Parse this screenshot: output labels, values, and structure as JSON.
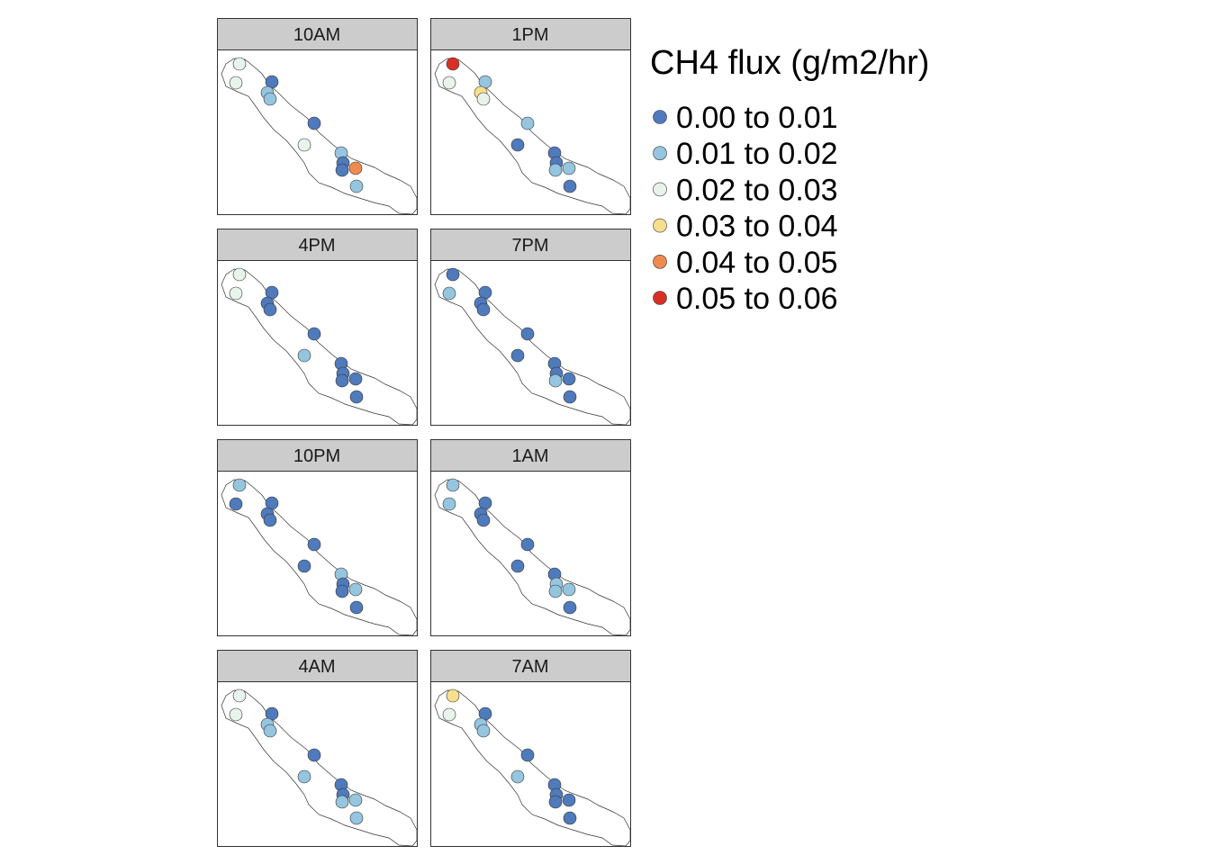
{
  "legend": {
    "title": "CH4 flux (g/m2/hr)",
    "classes": [
      {
        "label": "0.00 to 0.01",
        "color": "#4f7abb"
      },
      {
        "label": "0.01 to 0.02",
        "color": "#95c5df"
      },
      {
        "label": "0.02 to 0.03",
        "color": "#e8f3ec"
      },
      {
        "label": "0.03 to 0.04",
        "color": "#f8df8e"
      },
      {
        "label": "0.04 to 0.05",
        "color": "#f18a4e"
      },
      {
        "label": "0.05 to 0.06",
        "color": "#d73027"
      }
    ]
  },
  "chart_data": {
    "type": "map",
    "panels": [
      {
        "label": "10AM",
        "classes": [
          2,
          2,
          0,
          1,
          1,
          0,
          2,
          1,
          0,
          0,
          4,
          1
        ]
      },
      {
        "label": "1PM",
        "classes": [
          5,
          2,
          1,
          3,
          2,
          1,
          0,
          0,
          0,
          1,
          1,
          0
        ]
      },
      {
        "label": "4PM",
        "classes": [
          2,
          2,
          0,
          0,
          0,
          0,
          1,
          0,
          0,
          0,
          0,
          0
        ]
      },
      {
        "label": "7PM",
        "classes": [
          0,
          1,
          0,
          0,
          0,
          0,
          0,
          0,
          0,
          1,
          0,
          0
        ]
      },
      {
        "label": "10PM",
        "classes": [
          1,
          0,
          0,
          0,
          0,
          0,
          0,
          1,
          0,
          0,
          1,
          0
        ]
      },
      {
        "label": "1AM",
        "classes": [
          1,
          1,
          0,
          0,
          0,
          0,
          0,
          0,
          1,
          1,
          1,
          0
        ]
      },
      {
        "label": "4AM",
        "classes": [
          2,
          2,
          0,
          1,
          1,
          0,
          1,
          0,
          0,
          1,
          1,
          1
        ]
      },
      {
        "label": "7AM",
        "classes": [
          3,
          2,
          0,
          1,
          1,
          0,
          1,
          0,
          0,
          0,
          0,
          0
        ]
      }
    ]
  }
}
